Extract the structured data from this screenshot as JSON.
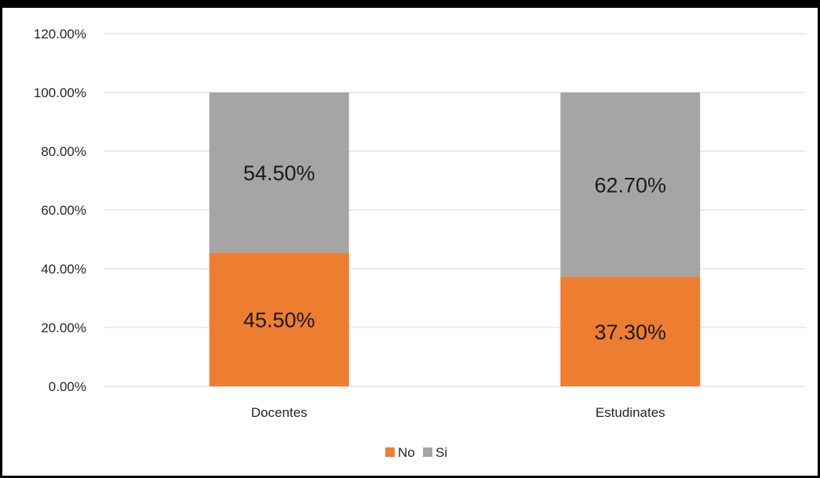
{
  "chart_data": {
    "type": "bar",
    "stacked": true,
    "categories": [
      "Docentes",
      "Estudinates"
    ],
    "series": [
      {
        "name": "No",
        "values": [
          45.5,
          37.3
        ],
        "labels": [
          "45.50%",
          "37.30%"
        ],
        "color": "#ED7D31"
      },
      {
        "name": "Si",
        "values": [
          54.5,
          62.7
        ],
        "labels": [
          "54.50%",
          "62.70%"
        ],
        "color": "#A5A5A5"
      }
    ],
    "yticks": [
      "0.00%",
      "20.00%",
      "40.00%",
      "60.00%",
      "80.00%",
      "100.00%",
      "120.00%"
    ],
    "ylim": [
      0,
      120
    ],
    "grid": true,
    "legend": "bottom",
    "gridColor": "#D9D9D9"
  }
}
